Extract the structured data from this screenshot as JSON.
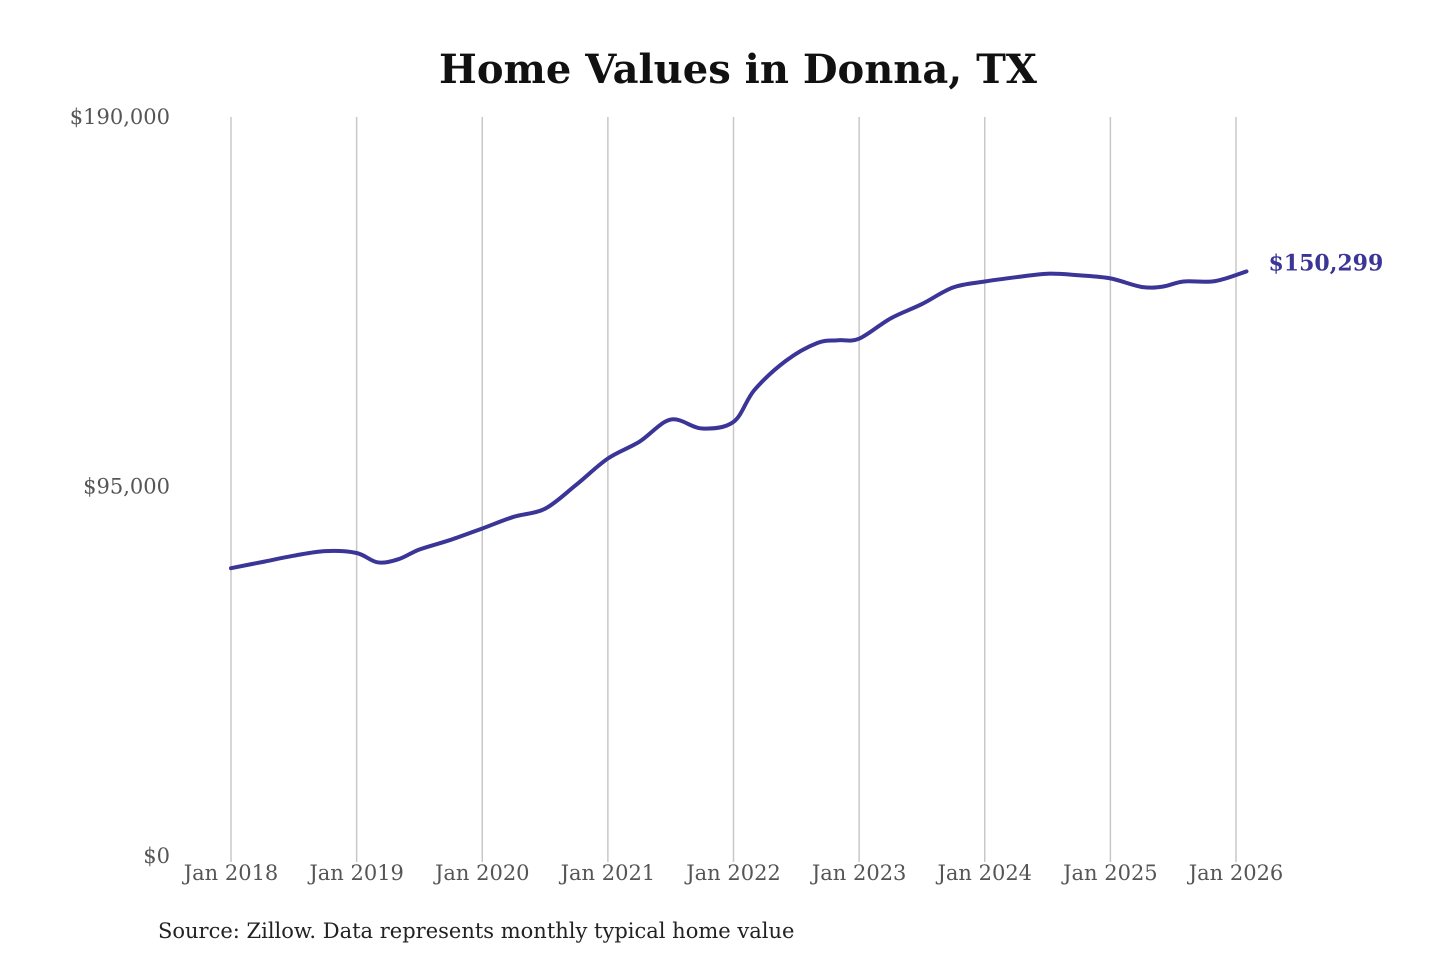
{
  "chart_data": {
    "type": "line",
    "title": "Home Values in Donna, TX",
    "xlabel": "",
    "ylabel": "",
    "ylim": [
      0,
      190000
    ],
    "y_ticks": [
      {
        "value": 0,
        "label": "$0"
      },
      {
        "value": 95000,
        "label": "$95,000"
      },
      {
        "value": 190000,
        "label": "$190,000"
      }
    ],
    "x_ticks": [
      {
        "value": "2018-01",
        "label": "Jan 2018"
      },
      {
        "value": "2019-01",
        "label": "Jan 2019"
      },
      {
        "value": "2020-01",
        "label": "Jan 2020"
      },
      {
        "value": "2021-01",
        "label": "Jan 2021"
      },
      {
        "value": "2022-01",
        "label": "Jan 2022"
      },
      {
        "value": "2023-01",
        "label": "Jan 2023"
      },
      {
        "value": "2024-01",
        "label": "Jan 2024"
      },
      {
        "value": "2025-01",
        "label": "Jan 2025"
      },
      {
        "value": "2026-01",
        "label": "Jan 2026"
      }
    ],
    "grid": "vertical",
    "legend": "none",
    "series": [
      {
        "color": "#3a3596",
        "points": [
          {
            "x": "2018-01",
            "y": 74000
          },
          {
            "x": "2018-04",
            "y": 75600
          },
          {
            "x": "2018-07",
            "y": 77200
          },
          {
            "x": "2018-10",
            "y": 78400
          },
          {
            "x": "2019-01",
            "y": 77900
          },
          {
            "x": "2019-03",
            "y": 75500
          },
          {
            "x": "2019-05",
            "y": 76300
          },
          {
            "x": "2019-07",
            "y": 78800
          },
          {
            "x": "2019-10",
            "y": 81300
          },
          {
            "x": "2020-01",
            "y": 84200
          },
          {
            "x": "2020-04",
            "y": 87200
          },
          {
            "x": "2020-07",
            "y": 89300
          },
          {
            "x": "2020-10",
            "y": 95500
          },
          {
            "x": "2021-01",
            "y": 102200
          },
          {
            "x": "2021-04",
            "y": 106500
          },
          {
            "x": "2021-07",
            "y": 112200
          },
          {
            "x": "2021-10",
            "y": 109900
          },
          {
            "x": "2022-01",
            "y": 111600
          },
          {
            "x": "2022-03",
            "y": 119800
          },
          {
            "x": "2022-06",
            "y": 127300
          },
          {
            "x": "2022-09",
            "y": 131900
          },
          {
            "x": "2022-11",
            "y": 132600
          },
          {
            "x": "2023-01",
            "y": 133000
          },
          {
            "x": "2023-04",
            "y": 138200
          },
          {
            "x": "2023-07",
            "y": 141900
          },
          {
            "x": "2023-10",
            "y": 146200
          },
          {
            "x": "2024-01",
            "y": 147700
          },
          {
            "x": "2024-04",
            "y": 148800
          },
          {
            "x": "2024-07",
            "y": 149700
          },
          {
            "x": "2024-10",
            "y": 149300
          },
          {
            "x": "2025-01",
            "y": 148500
          },
          {
            "x": "2025-04",
            "y": 146300
          },
          {
            "x": "2025-06",
            "y": 146400
          },
          {
            "x": "2025-08",
            "y": 147700
          },
          {
            "x": "2025-11",
            "y": 147800
          },
          {
            "x": "2026-02",
            "y": 150299
          }
        ]
      }
    ],
    "annotations": [
      {
        "text": "$150,299",
        "x": "2026-02",
        "y": 150299
      }
    ]
  },
  "source_note": "Source: Zillow. Data represents monthly typical home value"
}
